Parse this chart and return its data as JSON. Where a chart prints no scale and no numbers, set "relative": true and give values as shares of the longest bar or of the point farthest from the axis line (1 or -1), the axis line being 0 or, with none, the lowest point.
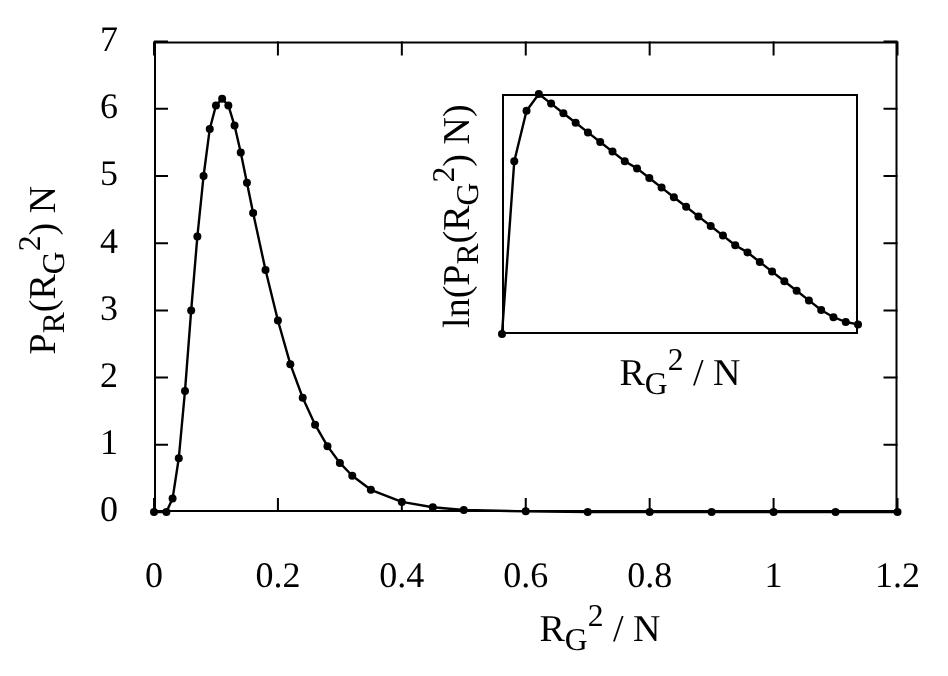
{
  "chart_data": [
    {
      "type": "line",
      "xlabel": "R$_{G}$$^{2}$ / N",
      "ylabel": "P$_{R}$(R$_{G}$$^{2}$) N",
      "marker": "circle",
      "color": "#000000",
      "x": [
        0,
        0.02,
        0.03,
        0.04,
        0.05,
        0.06,
        0.07,
        0.08,
        0.09,
        0.1,
        0.11,
        0.12,
        0.13,
        0.14,
        0.15,
        0.16,
        0.18,
        0.2,
        0.22,
        0.24,
        0.26,
        0.28,
        0.3,
        0.32,
        0.35,
        0.4,
        0.45,
        0.5,
        0.6,
        0.7,
        0.8,
        0.9,
        1,
        1.1,
        1.2
      ],
      "values": [
        0,
        0,
        0.2,
        0.8,
        1.8,
        3.0,
        4.1,
        5.0,
        5.7,
        6.05,
        6.15,
        6.05,
        5.75,
        5.35,
        4.9,
        4.45,
        3.6,
        2.85,
        2.2,
        1.7,
        1.3,
        0.98,
        0.73,
        0.54,
        0.33,
        0.15,
        0.07,
        0.03,
        0.01,
        0,
        0,
        0,
        0,
        0,
        0
      ],
      "xlim": [
        0,
        1.2
      ],
      "xticks": [
        0,
        0.2,
        0.4,
        0.6,
        0.8,
        1,
        1.2
      ],
      "ylim": [
        0,
        7
      ],
      "yticks": [
        0,
        1,
        2,
        3,
        4,
        5,
        6,
        7
      ]
    },
    {
      "type": "line",
      "relative": true,
      "tick_labels": false,
      "xlabel": "R$_{G}$$^{2}$ / N",
      "ylabel": "ln(P$_{R}$(R$_{G}$$^{2}$) N)",
      "marker": "circle",
      "color": "#000000",
      "categories": [
        null,
        null,
        null,
        null,
        null,
        null,
        null,
        null,
        null,
        null,
        null,
        null,
        null,
        null,
        null,
        null,
        null,
        null,
        null,
        null,
        null,
        null,
        null,
        null,
        null,
        null,
        null,
        null,
        null,
        null
      ],
      "values": [
        0,
        0.72,
        0.93,
        1,
        0.96,
        0.92,
        0.88,
        0.84,
        0.8,
        0.76,
        0.72,
        0.69,
        0.65,
        0.61,
        0.57,
        0.53,
        0.49,
        0.45,
        0.41,
        0.37,
        0.34,
        0.3,
        0.26,
        0.22,
        0.18,
        0.14,
        0.1,
        0.07,
        0.05,
        0.04
      ]
    }
  ]
}
